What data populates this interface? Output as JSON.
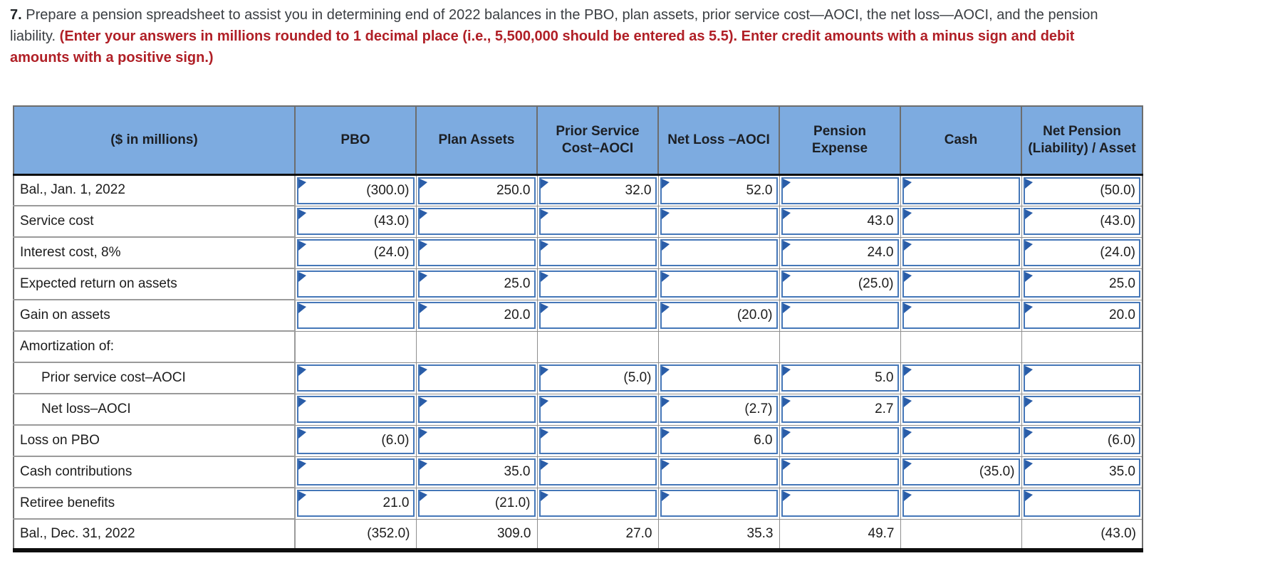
{
  "instructions": {
    "number": "7.",
    "text": "Prepare a pension spreadsheet to assist you in determining end of 2022 balances in the PBO, plan assets, prior service cost—AOCI, the net loss—AOCI, and the pension liability.",
    "red_text": "(Enter your answers in millions rounded to 1 decimal place (i.e., 5,500,000 should be entered as 5.5). Enter credit amounts with a minus sign and debit amounts with a positive sign.)"
  },
  "colors": {
    "header_blue": "#7dabe0",
    "input_border_blue": "#4577b8",
    "input_marker_blue": "#2a5da8",
    "red_text": "#b01f26",
    "grid_gray": "#8f8f8f"
  },
  "table": {
    "columns": [
      "($ in millions)",
      "PBO",
      "Plan Assets",
      "Prior Service Cost–AOCI",
      "Net Loss –AOCI",
      "Pension Expense",
      "Cash",
      "Net Pension (Liability) / Asset"
    ],
    "rows": [
      {
        "label": "Bal., Jan. 1, 2022",
        "indent": false,
        "type": "input",
        "cells": [
          "(300.0)",
          "250.0",
          "32.0",
          "52.0",
          "",
          "",
          "(50.0)"
        ]
      },
      {
        "label": "Service cost",
        "indent": false,
        "type": "input",
        "cells": [
          "(43.0)",
          "",
          "",
          "",
          "43.0",
          "",
          "(43.0)"
        ]
      },
      {
        "label": "Interest cost, 8%",
        "indent": false,
        "type": "input",
        "cells": [
          "(24.0)",
          "",
          "",
          "",
          "24.0",
          "",
          "(24.0)"
        ]
      },
      {
        "label": "Expected return on assets",
        "indent": false,
        "type": "input",
        "cells": [
          "",
          "25.0",
          "",
          "",
          "(25.0)",
          "",
          "25.0"
        ]
      },
      {
        "label": "Gain on assets",
        "indent": false,
        "type": "input",
        "cells": [
          "",
          "20.0",
          "",
          "(20.0)",
          "",
          "",
          "20.0"
        ]
      },
      {
        "label": "Amortization of:",
        "indent": false,
        "type": "plain",
        "cells": [
          "",
          "",
          "",
          "",
          "",
          "",
          ""
        ]
      },
      {
        "label": "Prior service cost–AOCI",
        "indent": true,
        "type": "input",
        "cells": [
          "",
          "",
          "(5.0)",
          "",
          "5.0",
          "",
          ""
        ]
      },
      {
        "label": "Net loss–AOCI",
        "indent": true,
        "type": "input",
        "cells": [
          "",
          "",
          "",
          "(2.7)",
          "2.7",
          "",
          ""
        ]
      },
      {
        "label": "Loss on PBO",
        "indent": false,
        "type": "input",
        "cells": [
          "(6.0)",
          "",
          "",
          "6.0",
          "",
          "",
          "(6.0)"
        ]
      },
      {
        "label": "Cash contributions",
        "indent": false,
        "type": "input",
        "cells": [
          "",
          "35.0",
          "",
          "",
          "",
          "(35.0)",
          "35.0"
        ]
      },
      {
        "label": "Retiree benefits",
        "indent": false,
        "type": "input",
        "cells": [
          "21.0",
          "(21.0)",
          "",
          "",
          "",
          "",
          ""
        ]
      },
      {
        "label": "Bal., Dec. 31, 2022",
        "indent": false,
        "type": "total",
        "cells": [
          "(352.0)",
          "309.0",
          "27.0",
          "35.3",
          "49.7",
          "",
          "(43.0)"
        ]
      }
    ]
  }
}
